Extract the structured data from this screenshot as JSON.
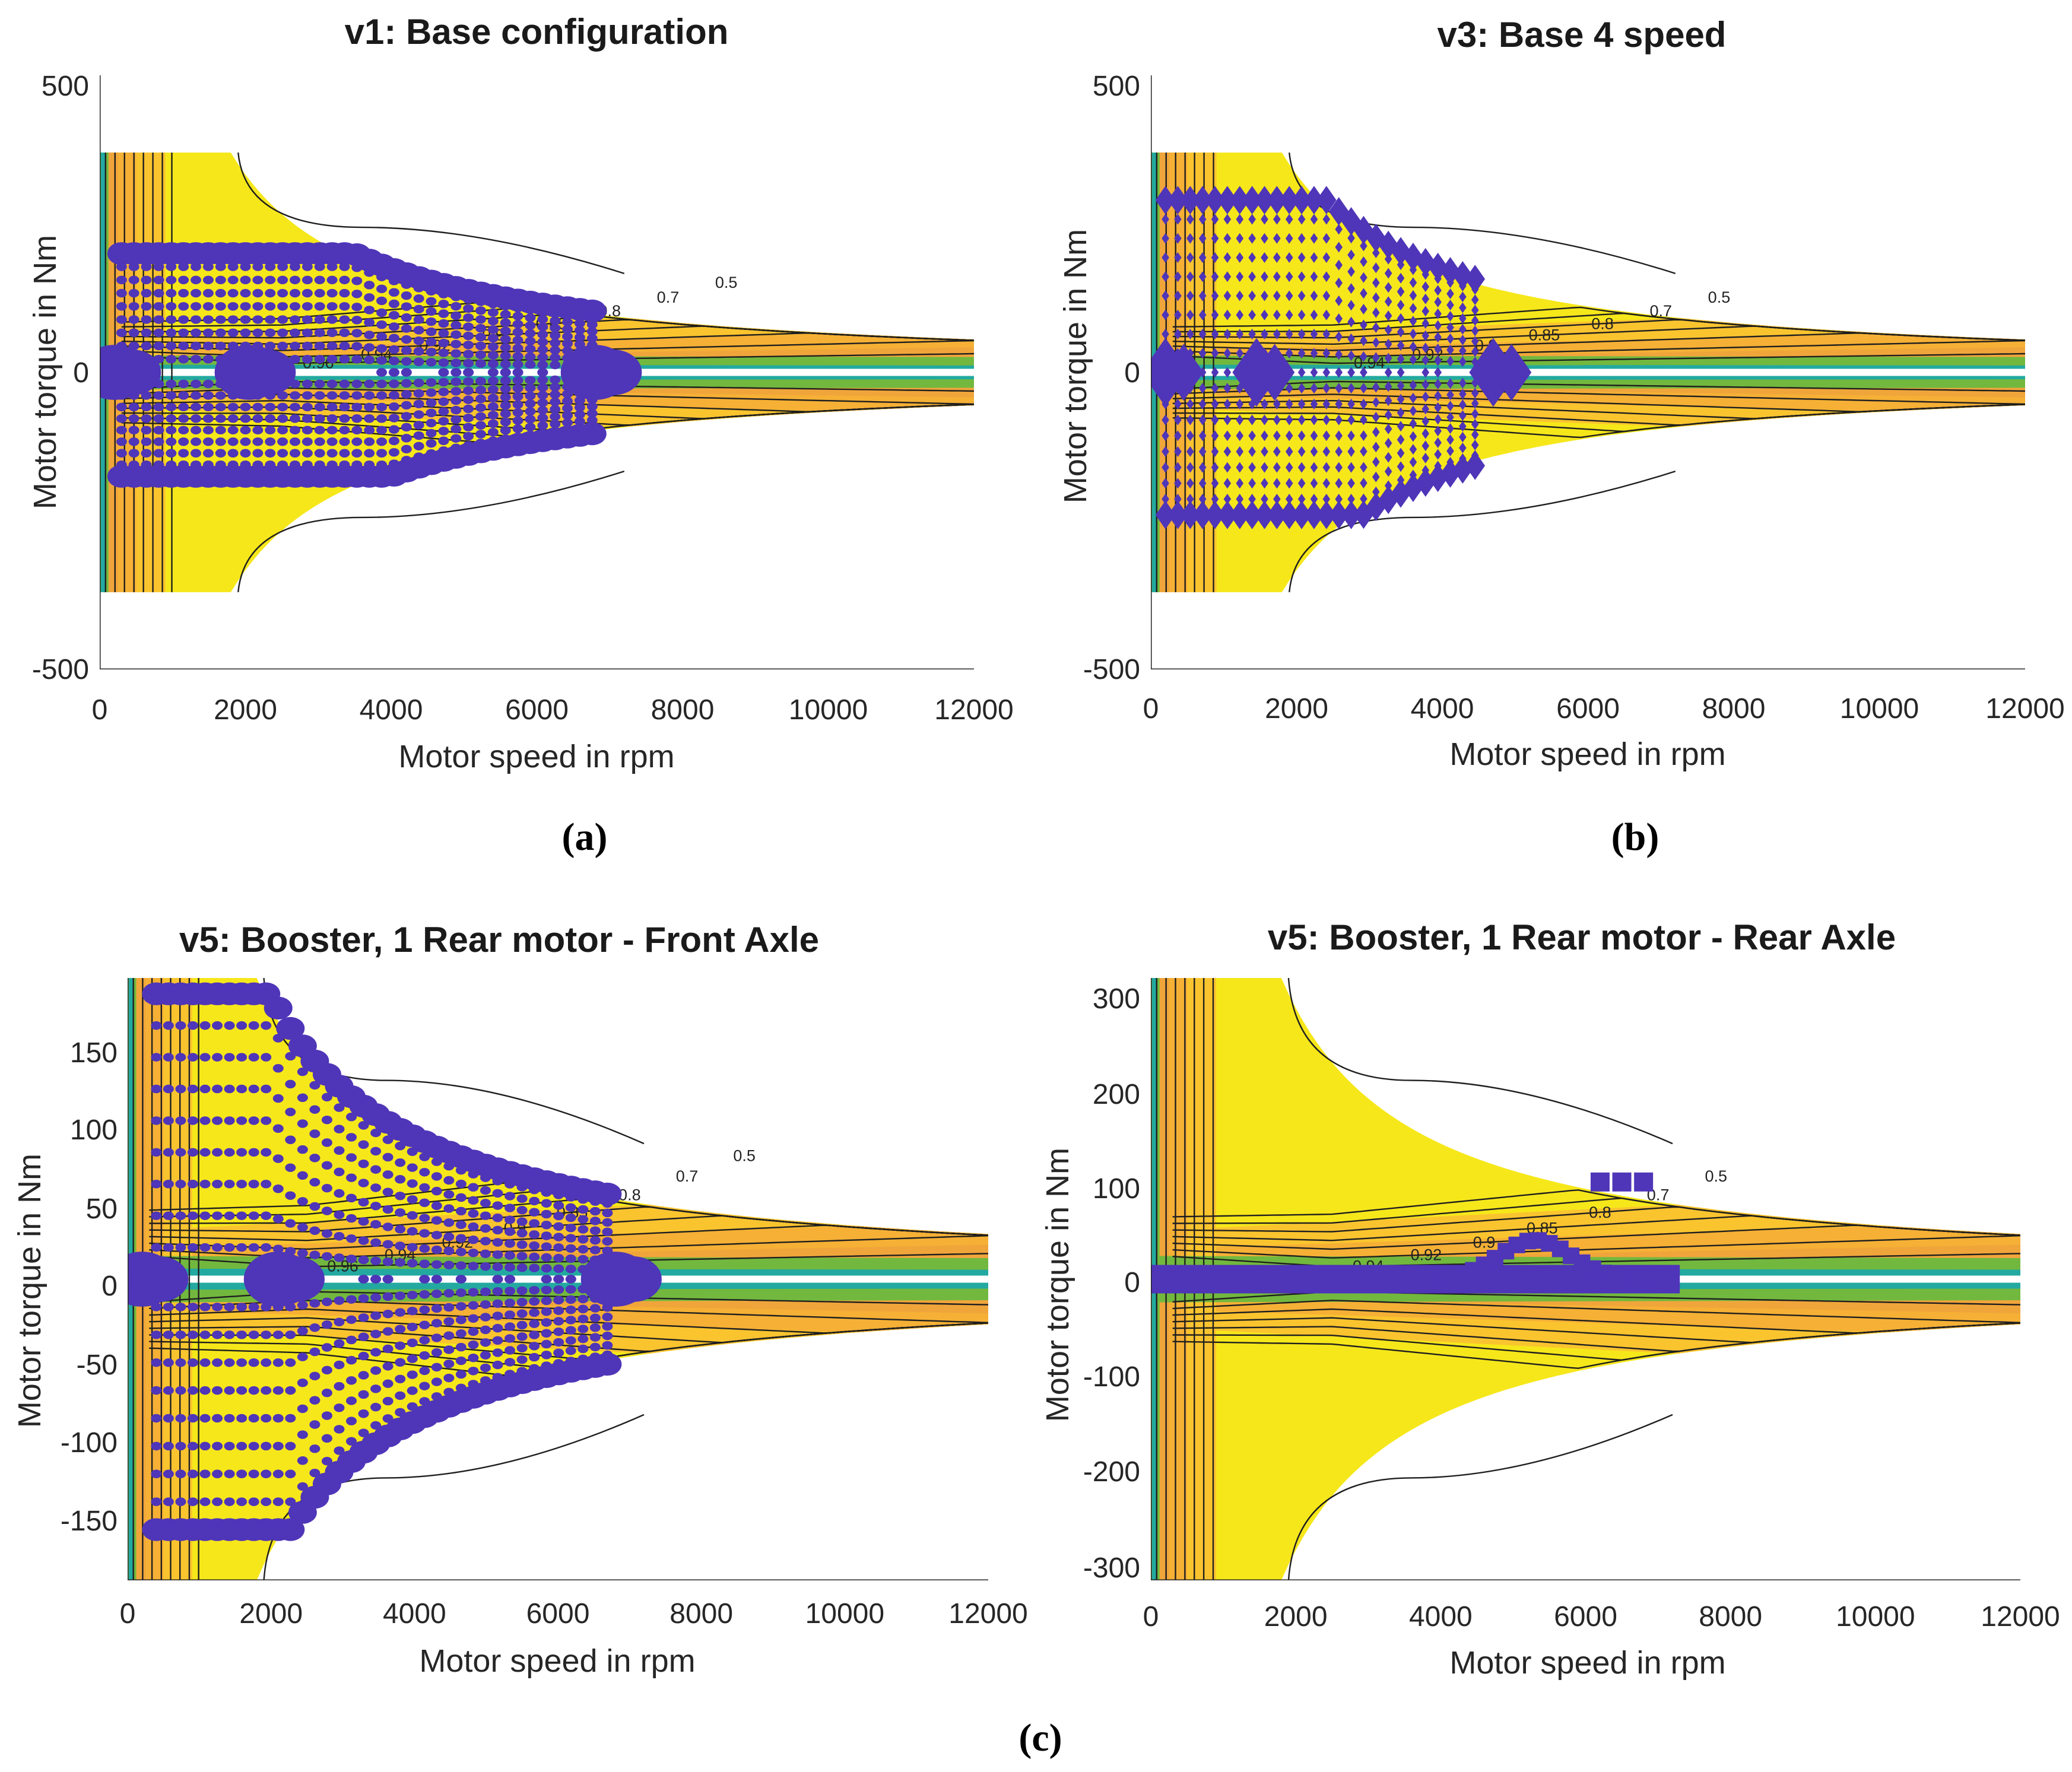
{
  "figure": {
    "sub_labels": [
      "(a)",
      "(b)",
      "(c)"
    ]
  },
  "chart_data": [
    {
      "type": "contour",
      "title": "v1: Base configuration",
      "xlabel": "Motor speed in rpm",
      "ylabel": "Motor torque in Nm",
      "xlim": [
        0,
        12000
      ],
      "ylim": [
        -500,
        500
      ],
      "xticks": [
        0,
        2000,
        4000,
        6000,
        8000,
        10000,
        12000
      ],
      "yticks": [
        -500,
        0,
        500
      ],
      "ytick_labels": [
        "-500",
        "0",
        "500"
      ],
      "tmax": 370,
      "contour_levels": [
        0.5,
        0.7,
        0.8,
        0.85,
        0.9,
        0.92,
        0.94,
        0.96
      ],
      "marker": "circle",
      "operating_points": {
        "top_band_torque": 200,
        "bottom_band_torque": -175,
        "band_speed_range": [
          300,
          6900
        ],
        "zero_torque_clusters_rpm": [
          200,
          2050,
          6800
        ]
      }
    },
    {
      "type": "contour",
      "title": "v3: Base 4 speed",
      "xlabel": "Motor speed in rpm",
      "ylabel": "Motor torque in Nm",
      "xlim": [
        0,
        12000
      ],
      "ylim": [
        -500,
        500
      ],
      "xticks": [
        0,
        2000,
        4000,
        6000,
        8000,
        10000,
        12000
      ],
      "yticks": [
        -500,
        0,
        500
      ],
      "ytick_labels": [
        "-500",
        "0",
        "500"
      ],
      "tmax": 370,
      "contour_levels": [
        0.5,
        0.7,
        0.8,
        0.85,
        0.9,
        0.92,
        0.94
      ],
      "marker": "diamond",
      "operating_points": {
        "top_band_torque": 290,
        "bottom_band_torque": -240,
        "band_speed_range": [
          200,
          4600
        ],
        "zero_torque_clusters_rpm": [
          200,
          1450,
          4700
        ]
      }
    },
    {
      "type": "contour",
      "title": "v5: Booster, 1 Rear motor - Front Axle",
      "xlabel": "Motor speed in rpm",
      "ylabel": "Motor torque in Nm",
      "xlim": [
        0,
        12000
      ],
      "ylim": [
        -190,
        190
      ],
      "xticks": [
        0,
        2000,
        4000,
        6000,
        8000,
        10000,
        12000
      ],
      "yticks": [
        -150,
        -100,
        -50,
        0,
        50,
        100,
        150
      ],
      "ytick_labels": [
        "-150",
        "-100",
        "-50",
        "0",
        "50",
        "100",
        "150"
      ],
      "tmax": 190,
      "contour_levels": [
        0.5,
        0.7,
        0.8,
        0.85,
        0.9,
        0.92,
        0.94,
        0.96
      ],
      "marker": "circle",
      "operating_points": {
        "top_band_torque": 180,
        "bottom_band_torque": -158,
        "band_speed_range": [
          400,
          6700
        ],
        "zero_torque_clusters_rpm": [
          200,
          2100,
          6800
        ]
      }
    },
    {
      "type": "contour",
      "title": "v5: Booster, 1 Rear motor - Rear Axle",
      "xlabel": "Motor speed in rpm",
      "ylabel": "Motor torque in Nm",
      "xlim": [
        0,
        12000
      ],
      "ylim": [
        -310,
        310
      ],
      "xticks": [
        0,
        2000,
        4000,
        6000,
        8000,
        10000,
        12000
      ],
      "yticks": [
        -300,
        -200,
        -100,
        0,
        100,
        200,
        300
      ],
      "ytick_labels": [
        "-300",
        "-200",
        "-100",
        "0",
        "100",
        "200",
        "300"
      ],
      "tmax": 310,
      "contour_levels": [
        0.5,
        0.7,
        0.8,
        0.85,
        0.9,
        0.92,
        0.94
      ],
      "marker": "square",
      "operating_points": {
        "near_zero_torque_speed_range": [
          0,
          7300
        ],
        "isolated_torque_level": 100,
        "isolated_speed_range": [
          6200,
          6800
        ]
      }
    }
  ],
  "colors": {
    "yellow": "#f6e71a",
    "orange1": "#fac42f",
    "orange2": "#f5b035",
    "orange3": "#f0a53b",
    "green": "#72b83e",
    "teal": "#23a9a0",
    "white_band": "#ffffff",
    "line": "#1f1f1f",
    "marker": "#4f35b8"
  }
}
